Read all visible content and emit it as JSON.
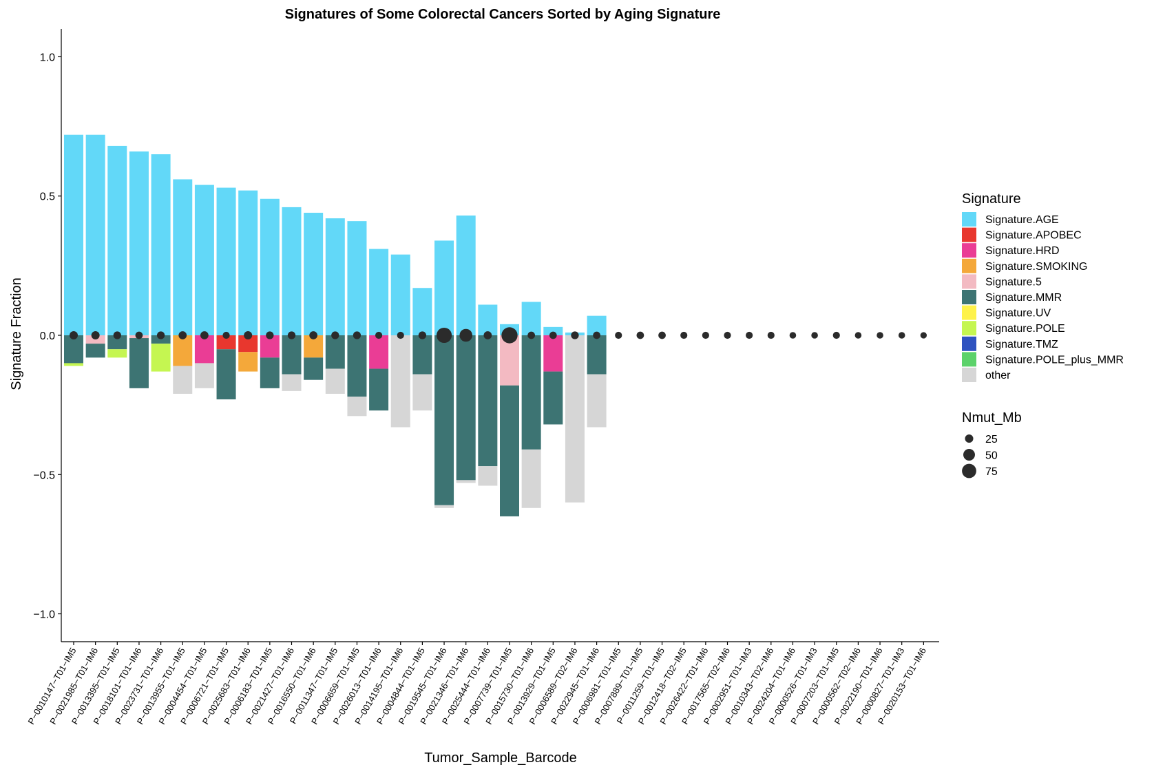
{
  "chart_data": {
    "type": "bar",
    "title": "Signatures of Some Colorectal Cancers Sorted by Aging Signature",
    "xlabel": "Tumor_Sample_Barcode",
    "ylabel": "Signature Fraction",
    "ylim": [
      -1.1,
      1.1
    ],
    "yticks": [
      1.0,
      0.5,
      0.0,
      -0.5,
      -1.0
    ],
    "ytick_labels": [
      "1.0",
      "0.5",
      "0.0",
      "−0.5",
      "−1.0"
    ],
    "grid": false,
    "legend_position": "right",
    "categories": [
      "P−0010147−T01−IM5",
      "P−0021985−T01−IM6",
      "P−0013395−T01−IM5",
      "P−0018101−T01−IM6",
      "P−0023731−T01−IM6",
      "P−0013955−T01−IM5",
      "P−0004454−T01−IM5",
      "P−0006721−T01−IM5",
      "P−0025683−T01−IM6",
      "P−0006183−T01−IM5",
      "P−0021427−T01−IM6",
      "P−0016550−T01−IM6",
      "P−0011347−T01−IM5",
      "P−0006659−T01−IM5",
      "P−0026013−T01−IM6",
      "P−0014195−T01−IM6",
      "P−0004844−T01−IM5",
      "P−0019545−T01−IM6",
      "P−0021346−T01−IM6",
      "P−0025444−T01−IM6",
      "P−0007739−T01−IM5",
      "P−0015730−T01−IM6",
      "P−0013929−T01−IM5",
      "P−0006589−T02−IM6",
      "P−0022945−T01−IM6",
      "P−0006981−T01−IM5",
      "P−0007889−T01−IM5",
      "P−0011259−T01−IM5",
      "P−0012418−T02−IM5",
      "P−0026422−T01−IM6",
      "P−0017565−T02−IM6",
      "P−0002951−T01−IM3",
      "P−0010343−T02−IM6",
      "P−0024204−T01−IM6",
      "P−0000526−T01−IM3",
      "P−0007203−T01−IM5",
      "P−0000562−T02−IM6",
      "P−0022190−T01−IM6",
      "P−0000827−T01−IM3",
      "P−0020153−T01−IM6"
    ],
    "series": [
      {
        "name": "Signature.AGE",
        "color": "#62D8F8",
        "values": [
          0.72,
          0.72,
          0.68,
          0.66,
          0.65,
          0.56,
          0.54,
          0.53,
          0.52,
          0.49,
          0.46,
          0.44,
          0.42,
          0.41,
          0.31,
          0.29,
          0.17,
          0.34,
          0.43,
          0.11,
          0.04,
          0.12,
          0.03,
          0.01,
          0.07,
          0,
          0,
          0,
          0,
          0,
          0,
          0,
          0,
          0,
          0,
          0,
          0,
          0,
          0,
          0
        ]
      },
      {
        "name": "Signature.APOBEC",
        "color": "#E8372E",
        "values": [
          0,
          0,
          0,
          0,
          0,
          0,
          0,
          -0.05,
          -0.06,
          0,
          0,
          0,
          0,
          0,
          0,
          0,
          0,
          0,
          0,
          0,
          0,
          0,
          0,
          0,
          0,
          0,
          0,
          0,
          0,
          0,
          0,
          0,
          0,
          0,
          0,
          0,
          0,
          0,
          0,
          0
        ]
      },
      {
        "name": "Signature.HRD",
        "color": "#EA3D95",
        "values": [
          0,
          0,
          0,
          0,
          0,
          0,
          -0.1,
          0,
          0,
          -0.08,
          0,
          0,
          0,
          0,
          -0.12,
          0,
          0,
          0,
          0,
          0,
          0,
          0,
          -0.13,
          0,
          0,
          0,
          0,
          0,
          0,
          0,
          0,
          0,
          0,
          0,
          0,
          0,
          0,
          0,
          0,
          0
        ]
      },
      {
        "name": "Signature.SMOKING",
        "color": "#F4A83A",
        "values": [
          0,
          0,
          0,
          0,
          0,
          -0.11,
          0,
          0,
          -0.07,
          0,
          0,
          -0.08,
          0,
          0,
          0,
          0,
          0,
          0,
          0,
          0,
          0,
          0,
          0,
          0,
          0,
          0,
          0,
          0,
          0,
          0,
          0,
          0,
          0,
          0,
          0,
          0,
          0,
          0,
          0,
          0
        ]
      },
      {
        "name": "Signature.5",
        "color": "#F3BAC2",
        "values": [
          0,
          -0.03,
          0,
          -0.01,
          0,
          0,
          0,
          0,
          0,
          0,
          0,
          0,
          0,
          0,
          0,
          0,
          0,
          0,
          0,
          0,
          -0.18,
          0,
          0,
          0,
          0,
          0,
          0,
          0,
          0,
          0,
          0,
          0,
          0,
          0,
          0,
          0,
          0,
          0,
          0,
          0
        ]
      },
      {
        "name": "Signature.MMR",
        "color": "#3D7473",
        "values": [
          -0.1,
          -0.05,
          -0.05,
          -0.18,
          -0.03,
          0,
          0,
          -0.18,
          0,
          -0.11,
          -0.14,
          -0.08,
          -0.12,
          -0.22,
          -0.15,
          0,
          -0.14,
          -0.61,
          -0.52,
          -0.47,
          -0.47,
          -0.41,
          -0.19,
          0,
          -0.14,
          0,
          0,
          0,
          0,
          0,
          0,
          0,
          0,
          0,
          0,
          0,
          0,
          0,
          0,
          0
        ]
      },
      {
        "name": "Signature.UV",
        "color": "#FEF24A",
        "values": [
          0,
          0,
          0,
          0,
          0,
          0,
          0,
          0,
          0,
          0,
          0,
          0,
          0,
          0,
          0,
          0,
          0,
          0,
          0,
          0,
          0,
          0,
          0,
          0,
          0,
          0,
          0,
          0,
          0,
          0,
          0,
          0,
          0,
          0,
          0,
          0,
          0,
          0,
          0,
          0
        ]
      },
      {
        "name": "Signature.POLE",
        "color": "#C5F651",
        "values": [
          -0.01,
          0,
          -0.03,
          0,
          -0.1,
          0,
          0,
          0,
          0,
          0,
          0,
          0,
          0,
          0,
          0,
          0,
          0,
          0,
          0,
          0,
          0,
          0,
          0,
          0,
          0,
          0,
          0,
          0,
          0,
          0,
          0,
          0,
          0,
          0,
          0,
          0,
          0,
          0,
          0,
          0
        ]
      },
      {
        "name": "Signature.TMZ",
        "color": "#2E52C0",
        "values": [
          0,
          0,
          0,
          0,
          0,
          0,
          0,
          0,
          0,
          0,
          0,
          0,
          0,
          0,
          0,
          0,
          0,
          0,
          0,
          0,
          0,
          0,
          0,
          0,
          0,
          0,
          0,
          0,
          0,
          0,
          0,
          0,
          0,
          0,
          0,
          0,
          0,
          0,
          0,
          0
        ]
      },
      {
        "name": "Signature.POLE_plus_MMR",
        "color": "#5CD26A",
        "values": [
          0,
          0,
          0,
          0,
          0,
          0,
          0,
          0,
          0,
          0,
          0,
          0,
          0,
          0,
          0,
          0,
          0,
          0,
          0,
          0,
          0,
          0,
          0,
          0,
          0,
          0,
          0,
          0,
          0,
          0,
          0,
          0,
          0,
          0,
          0,
          0,
          0,
          0,
          0,
          0
        ]
      },
      {
        "name": "other",
        "color": "#D6D6D6",
        "values": [
          0,
          0,
          0,
          0,
          0,
          -0.1,
          -0.09,
          0,
          0,
          0,
          -0.06,
          0,
          -0.09,
          -0.07,
          0,
          -0.33,
          -0.13,
          -0.01,
          -0.01,
          -0.07,
          0,
          -0.21,
          0,
          -0.6,
          -0.19,
          0,
          0,
          0,
          0,
          0,
          0,
          0,
          0,
          0,
          0,
          0,
          0,
          0,
          0,
          0
        ]
      }
    ],
    "point_series": {
      "name": "Nmut_Mb",
      "color": "#2B2B2B",
      "values": [
        25,
        25,
        22,
        20,
        22,
        24,
        24,
        18,
        25,
        22,
        22,
        24,
        22,
        22,
        18,
        18,
        22,
        85,
        60,
        24,
        95,
        20,
        20,
        22,
        20,
        18,
        20,
        20,
        18,
        18,
        18,
        18,
        18,
        16,
        16,
        18,
        16,
        16,
        16,
        15
      ]
    },
    "size_legend": {
      "title": "Nmut_Mb",
      "breaks": [
        25,
        50,
        75
      ],
      "labels": [
        "25",
        "50",
        "75"
      ]
    },
    "color_legend_title": "Signature"
  }
}
